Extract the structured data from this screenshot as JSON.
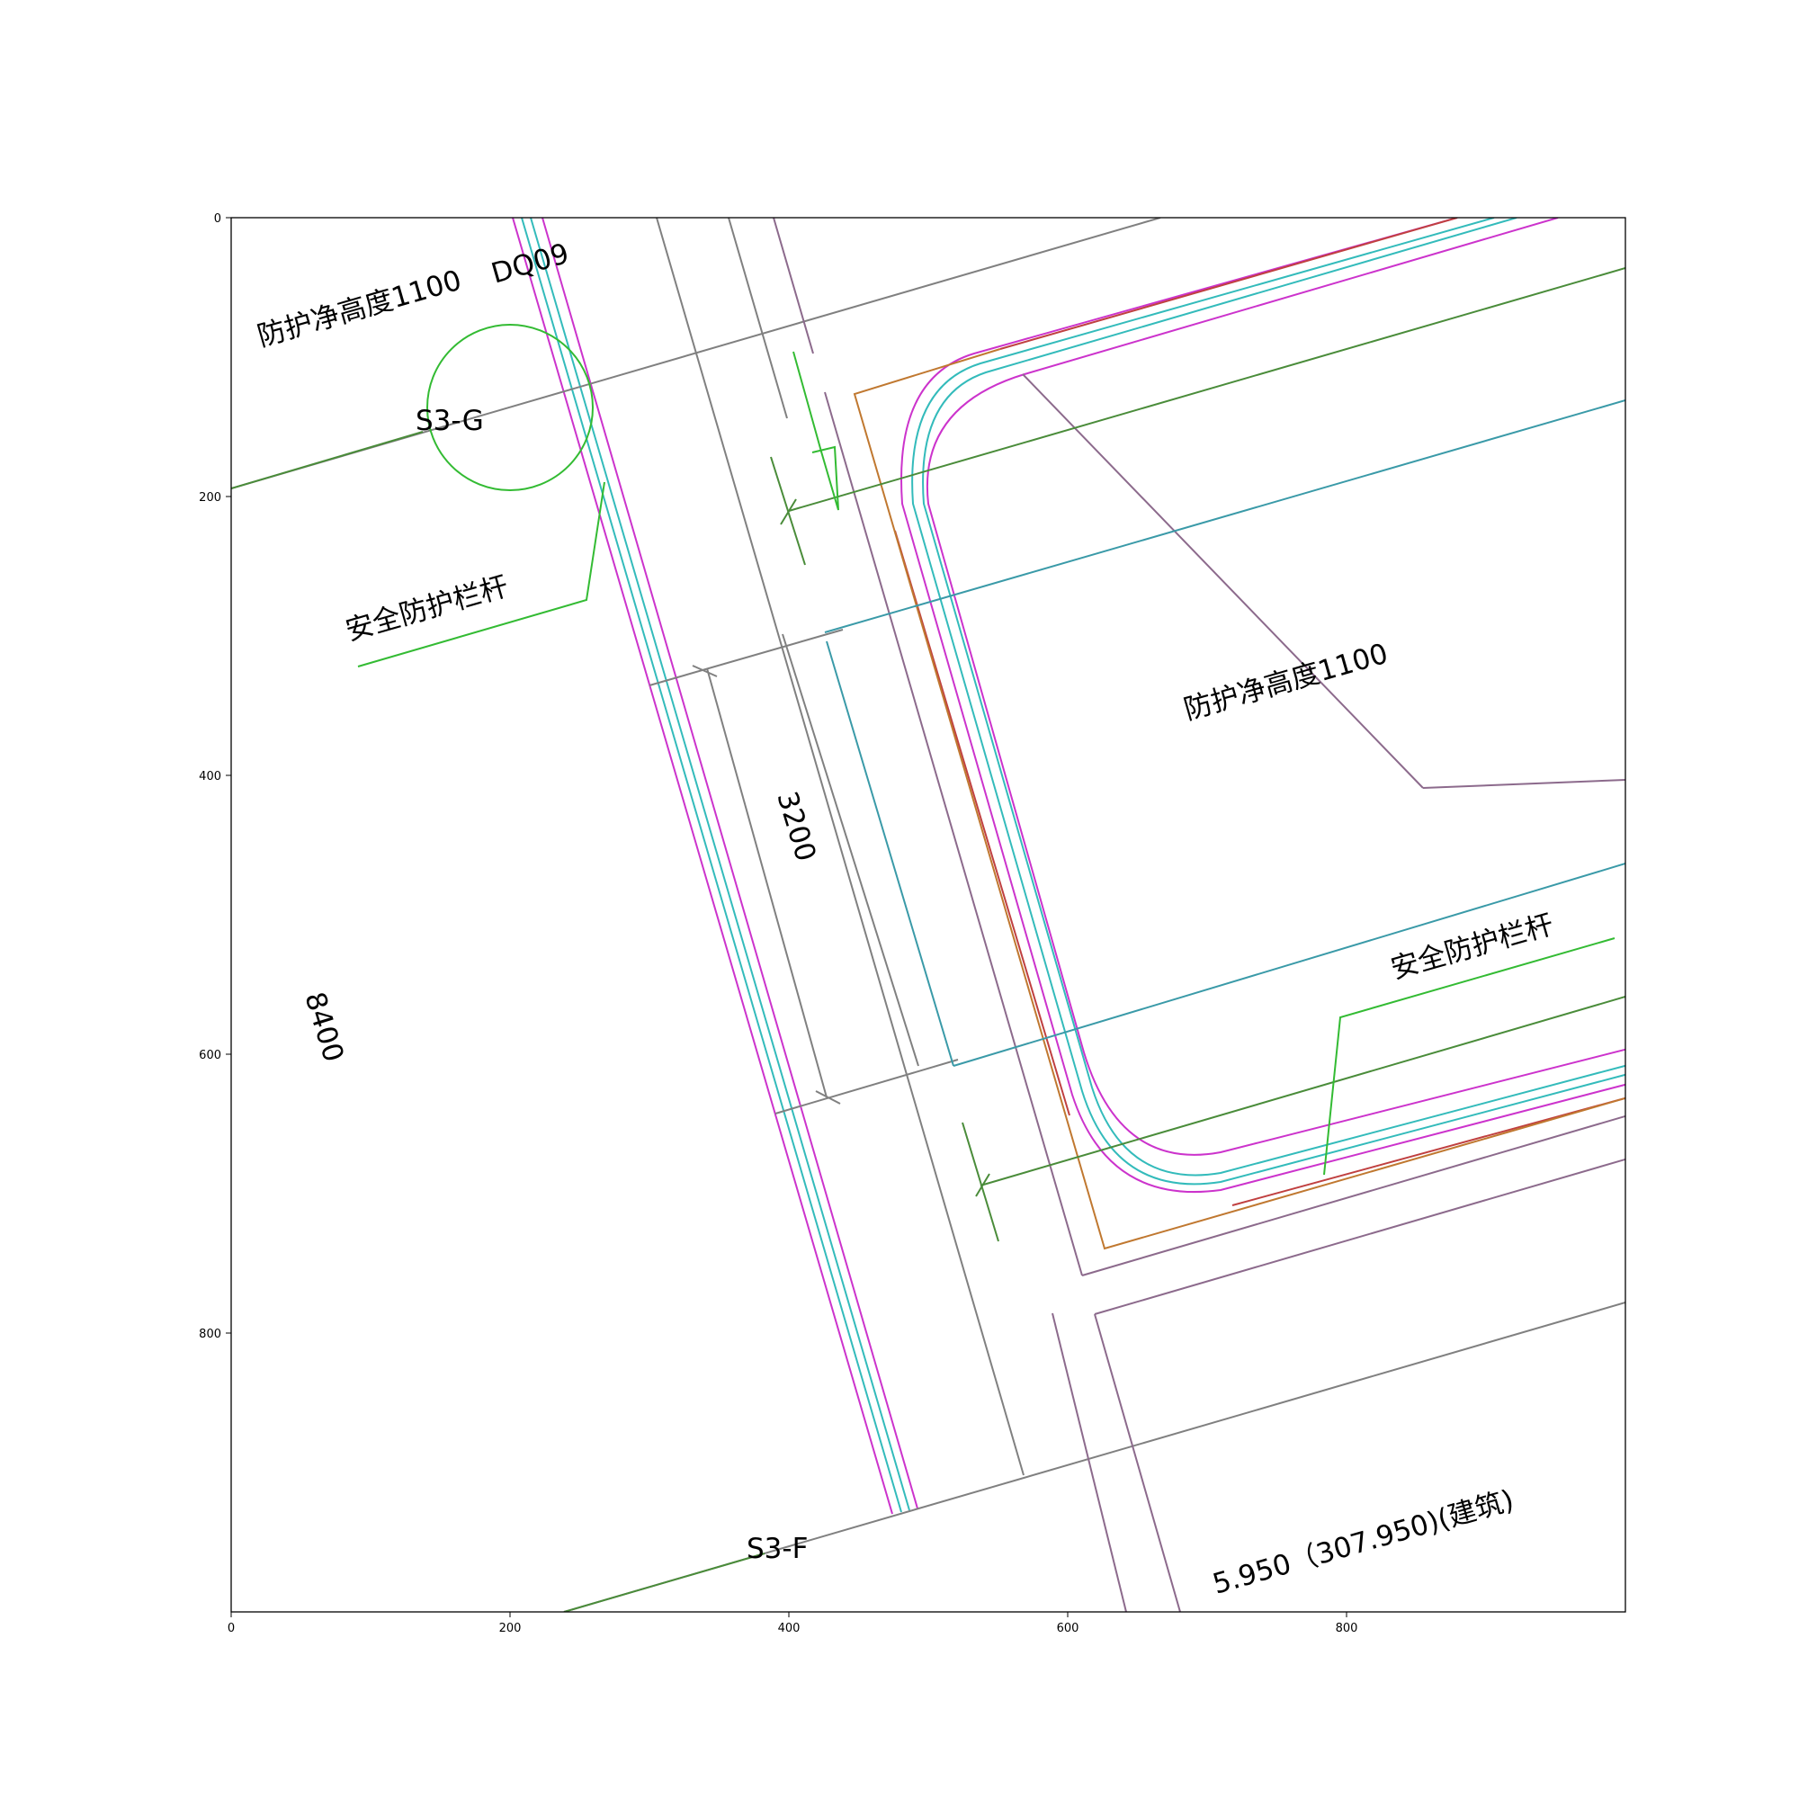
{
  "axes": {
    "xlim": [
      0,
      1000
    ],
    "ylim": [
      1000,
      0
    ],
    "x_ticks": [
      "0",
      "200",
      "400",
      "600",
      "800"
    ],
    "y_ticks": [
      "0",
      "200",
      "400",
      "600",
      "800"
    ]
  },
  "labels": {
    "protect_height_1": "防护净高度1100",
    "tag_dq09": "DQ09",
    "tag_s3g": "S3-G",
    "railing_1": "安全防护栏杆",
    "dim_3200": "3200",
    "dim_8400": "8400",
    "protect_height_2": "防护净高度1100",
    "railing_2": "安全防护栏杆",
    "tag_s3f": "S3-F",
    "elevation": "5.950（307.950)(建筑)"
  },
  "colors": {
    "magenta": "#cc33cc",
    "cyan": "#33bbbb",
    "grey": "#808080",
    "purple": "#8c6a8c",
    "green": "#33bb33",
    "dark_green": "#4a8c3a",
    "brown": "#c07830",
    "red": "#c04040",
    "teal": "#3a9aa8"
  }
}
